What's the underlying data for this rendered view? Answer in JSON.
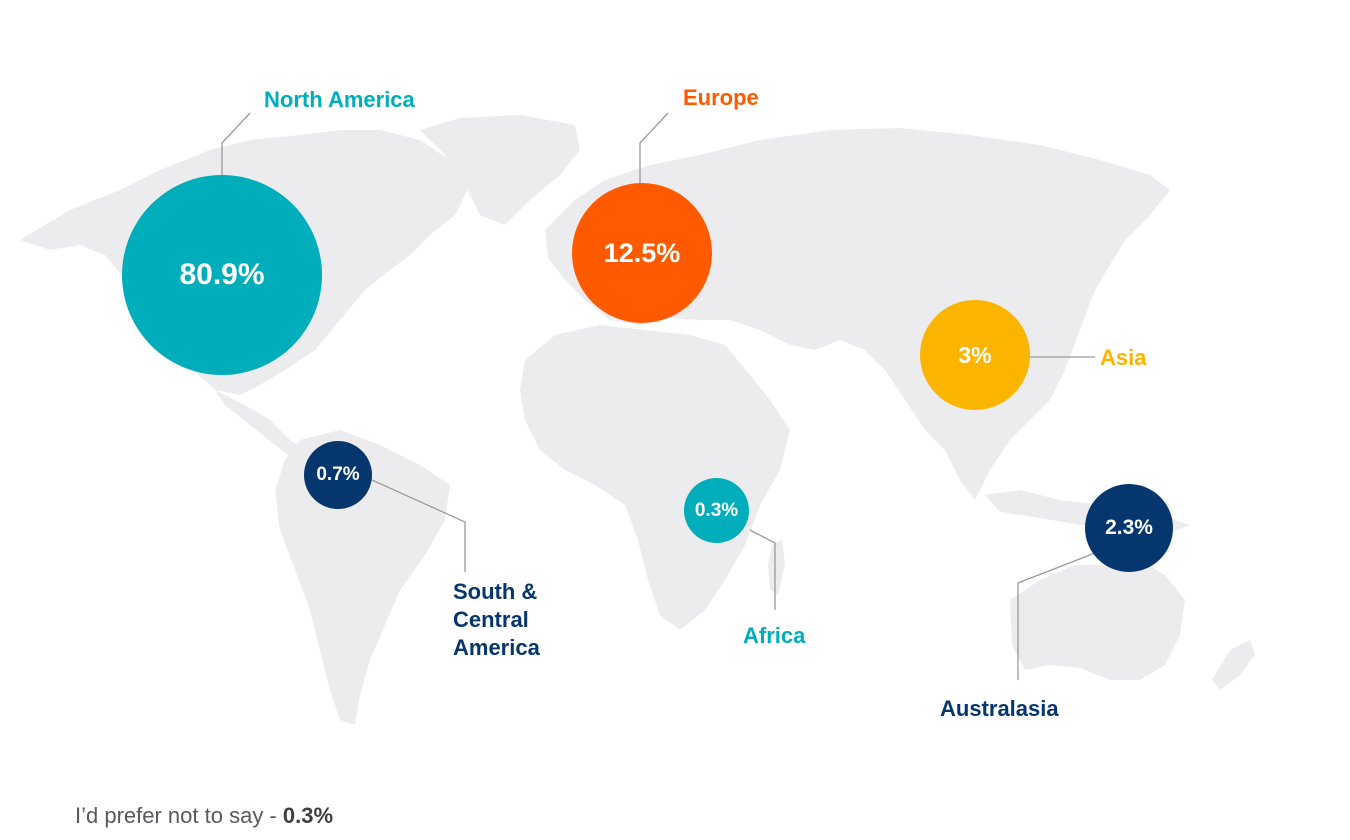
{
  "regions": {
    "north_america": {
      "label": "North America",
      "value": "80.9%",
      "color": "#00adbb"
    },
    "europe": {
      "label": "Europe",
      "value": "12.5%",
      "color": "#ff5a00"
    },
    "asia": {
      "label": "Asia",
      "value": "3%",
      "color": "#fbb400"
    },
    "south_central_america": {
      "label_lines": [
        "South &",
        "Central",
        "America"
      ],
      "value": "0.7%",
      "color": "#05366e"
    },
    "africa": {
      "label": "Africa",
      "value": "0.3%",
      "color": "#00adbb"
    },
    "australasia": {
      "label": "Australasia",
      "value": "2.3%",
      "color": "#05366e"
    }
  },
  "footnote": {
    "prefix": "I’d prefer not to say - ",
    "value": "0.3%"
  },
  "colors": {
    "land": "#ececee",
    "leader_line": "#9a9a9a"
  }
}
